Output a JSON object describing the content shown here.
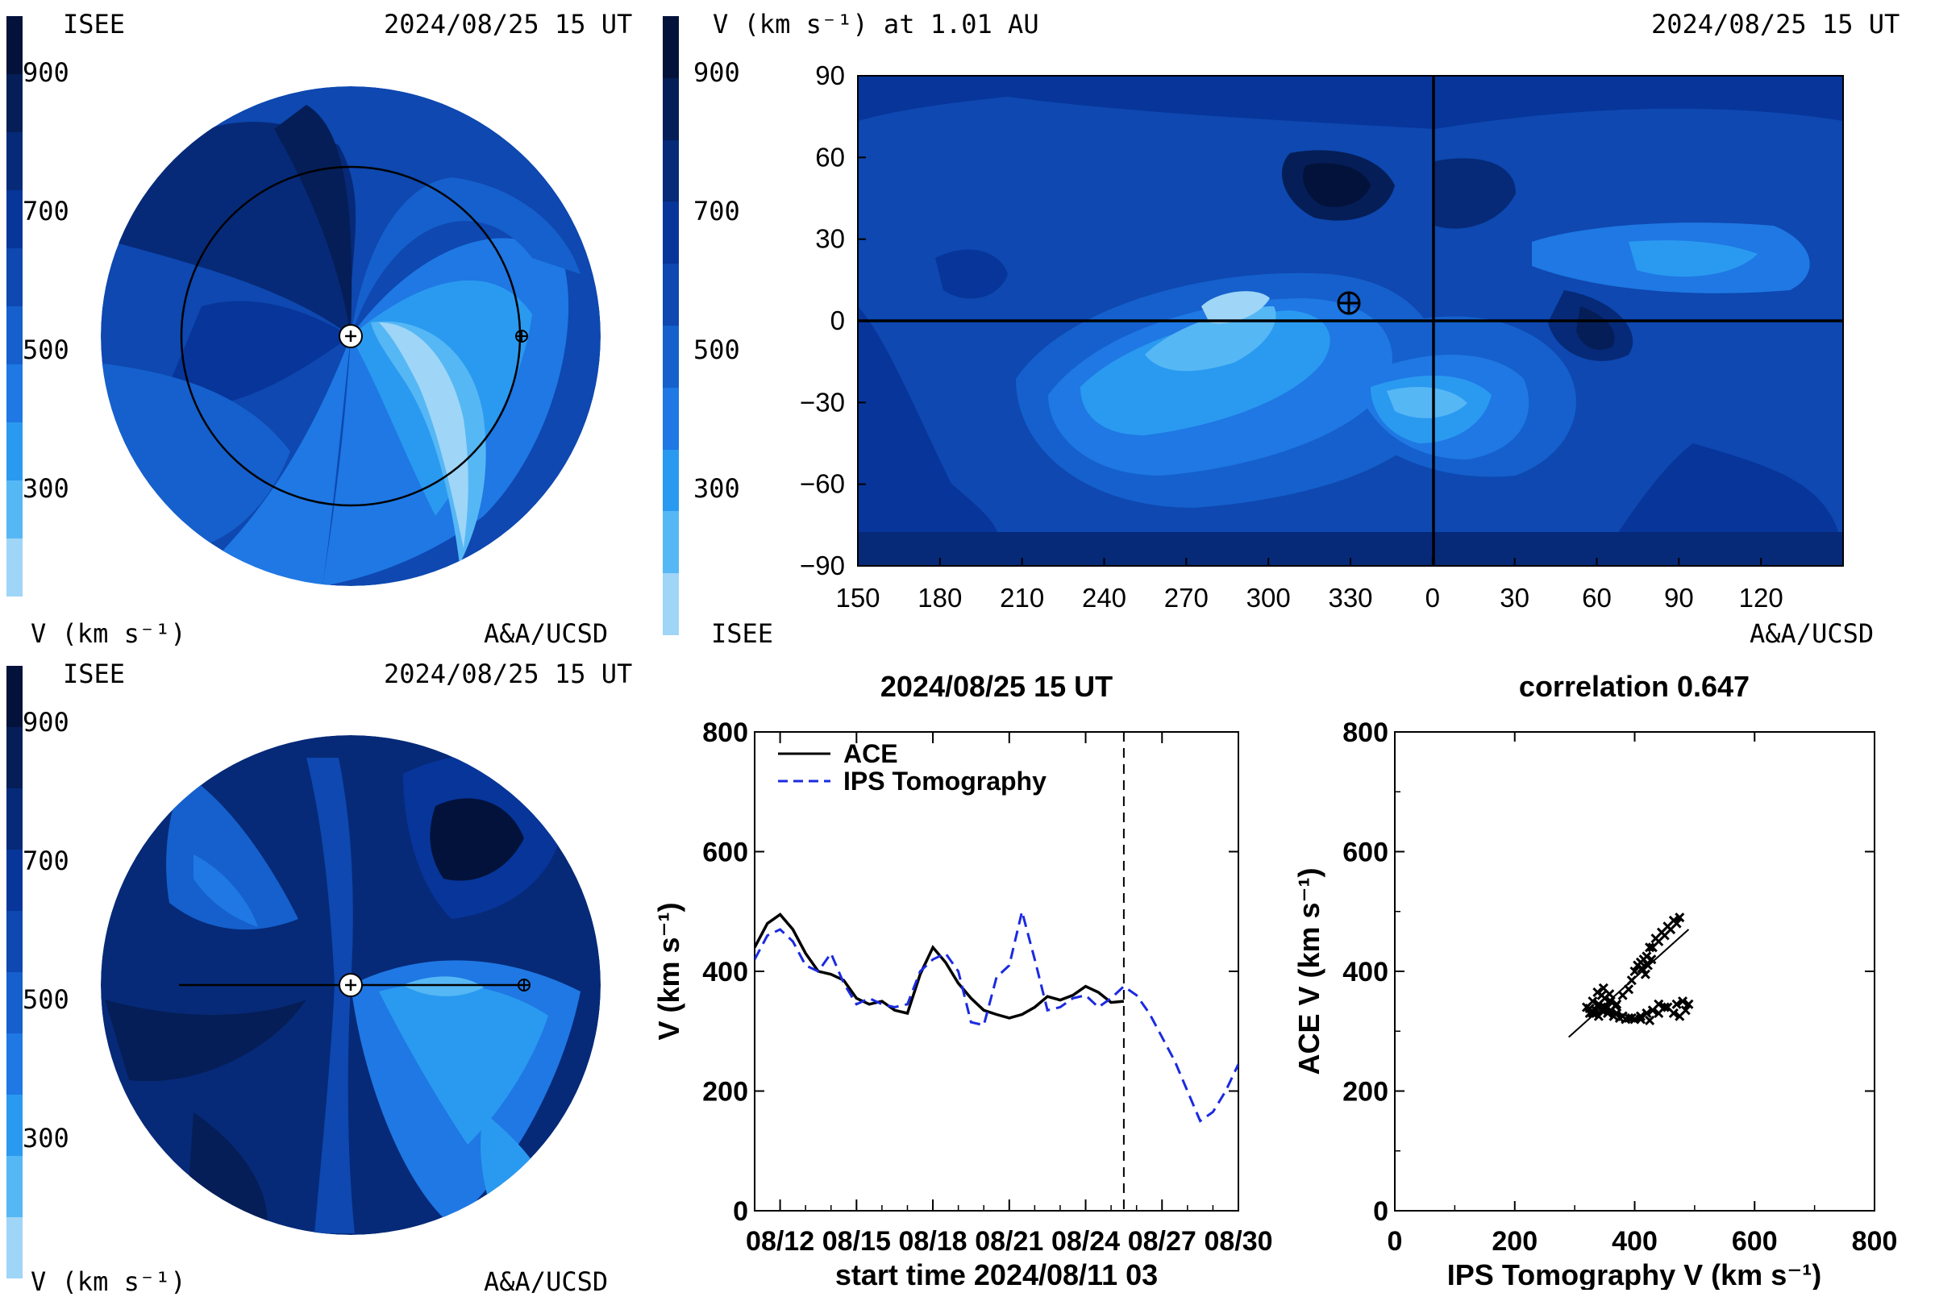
{
  "colorscale": {
    "levels": [
      "#9fd5f7",
      "#56b7f5",
      "#2a9af0",
      "#1f78e4",
      "#1560cc",
      "#0e48b0",
      "#07359a",
      "#062a78",
      "#051e57",
      "#03123a"
    ],
    "ticks": [
      "900",
      "700",
      "500",
      "300"
    ],
    "unit_label": "V (km s⁻¹)"
  },
  "panels": {
    "top_left": {
      "agency": "ISEE",
      "time": "2024/08/25 15 UT",
      "unit": "V (km s⁻¹)",
      "credit": "A&A/UCSD"
    },
    "top_right": {
      "title": "V (km s⁻¹) at 1.01 AU",
      "time": "2024/08/25 15 UT",
      "agency": "ISEE",
      "credit": "A&A/UCSD"
    },
    "bottom_left": {
      "agency": "ISEE",
      "time": "2024/08/25 15 UT",
      "unit": "V (km s⁻¹)",
      "credit": "A&A/UCSD"
    }
  },
  "chart_data": [
    {
      "type": "heatmap",
      "title": "V (km s⁻¹) at 1.01 AU",
      "x_tick_labels": [
        "150",
        "180",
        "210",
        "240",
        "270",
        "300",
        "330",
        "0",
        "30",
        "60",
        "90",
        "120"
      ],
      "y_tick_labels": [
        "90",
        "60",
        "30",
        "0",
        "−30",
        "−60",
        "−90"
      ],
      "ylim": [
        -90,
        90
      ]
    },
    {
      "type": "line",
      "title": "2024/08/25 15 UT",
      "xlabel": "start time 2024/08/11 03",
      "ylabel": "V (km s⁻¹)",
      "ylim": [
        0,
        800
      ],
      "xlim": [
        0,
        19
      ],
      "x_tick_labels": [
        "08/12",
        "08/15",
        "08/18",
        "08/21",
        "08/24",
        "08/27",
        "08/30"
      ],
      "x_tick_days": [
        1,
        4,
        7,
        10,
        13,
        16,
        19
      ],
      "y_ticks": [
        0,
        200,
        400,
        600,
        800
      ],
      "legend_position": "top-left",
      "marker_line_day": 14.5,
      "series": [
        {
          "name": "ACE",
          "color": "#000000",
          "style": "solid",
          "x": [
            0,
            0.5,
            1,
            1.5,
            2,
            2.5,
            3,
            3.5,
            4,
            4.5,
            5,
            5.5,
            6,
            6.5,
            7,
            7.5,
            8,
            8.5,
            9,
            9.5,
            10,
            10.5,
            11,
            11.5,
            12,
            12.5,
            13,
            13.5,
            14,
            14.5
          ],
          "y": [
            440,
            480,
            495,
            470,
            430,
            400,
            395,
            385,
            355,
            345,
            350,
            335,
            330,
            395,
            440,
            415,
            380,
            355,
            335,
            328,
            322,
            328,
            340,
            358,
            352,
            360,
            375,
            365,
            348,
            350
          ]
        },
        {
          "name": "IPS Tomography",
          "color": "#1a2ae0",
          "style": "dashed",
          "x": [
            0,
            0.5,
            1,
            1.5,
            2,
            2.5,
            3,
            3.5,
            4,
            4.5,
            5,
            5.5,
            6,
            6.5,
            7,
            7.5,
            8,
            8.5,
            9,
            9.5,
            10,
            10.5,
            11,
            11.5,
            12,
            12.5,
            13,
            13.5,
            14,
            14.5,
            15,
            15.5,
            16,
            16.5,
            17,
            17.5,
            18,
            18.5,
            19
          ],
          "y": [
            420,
            460,
            470,
            450,
            410,
            400,
            430,
            380,
            345,
            355,
            345,
            340,
            345,
            400,
            420,
            430,
            400,
            315,
            310,
            390,
            410,
            500,
            420,
            335,
            340,
            355,
            360,
            340,
            355,
            375,
            360,
            330,
            290,
            250,
            200,
            150,
            165,
            200,
            245
          ]
        }
      ]
    },
    {
      "type": "scatter",
      "title": "correlation 0.647",
      "xlabel": "IPS Tomography V (km s⁻¹)",
      "ylabel": "ACE V (km s⁻¹)",
      "xlim": [
        0,
        800
      ],
      "ylim": [
        0,
        800
      ],
      "x_ticks": [
        0,
        200,
        400,
        600,
        800
      ],
      "y_ticks": [
        0,
        200,
        400,
        600,
        800
      ],
      "fit_line": {
        "x": [
          290,
          490
        ],
        "y": [
          290,
          470
        ]
      },
      "points": {
        "x": [
          320,
          330,
          340,
          350,
          360,
          345,
          335,
          325,
          340,
          355,
          370,
          380,
          390,
          395,
          400,
          405,
          410,
          415,
          420,
          430,
          440,
          450,
          460,
          470,
          475,
          465,
          455,
          445,
          435,
          425,
          412,
          418,
          422,
          428,
          380,
          395,
          410,
          425,
          440,
          455,
          470,
          480,
          490,
          485,
          475,
          465,
          450,
          440,
          430,
          420,
          410,
          400,
          390,
          380,
          370,
          360,
          350,
          340,
          345,
          355,
          365,
          375,
          385,
          330,
          325,
          338,
          348,
          358,
          368
        ],
        "y": [
          340,
          330,
          345,
          355,
          350,
          360,
          335,
          330,
          325,
          340,
          345,
          360,
          370,
          385,
          400,
          410,
          415,
          420,
          425,
          440,
          450,
          460,
          470,
          480,
          490,
          485,
          475,
          465,
          455,
          440,
          405,
          395,
          410,
          420,
          325,
          322,
          320,
          318,
          330,
          340,
          345,
          350,
          345,
          335,
          325,
          330,
          340,
          345,
          335,
          330,
          325,
          320,
          322,
          325,
          330,
          335,
          340,
          345,
          335,
          330,
          325,
          322,
          320,
          350,
          338,
          365,
          372,
          362,
          342
        ]
      }
    }
  ]
}
